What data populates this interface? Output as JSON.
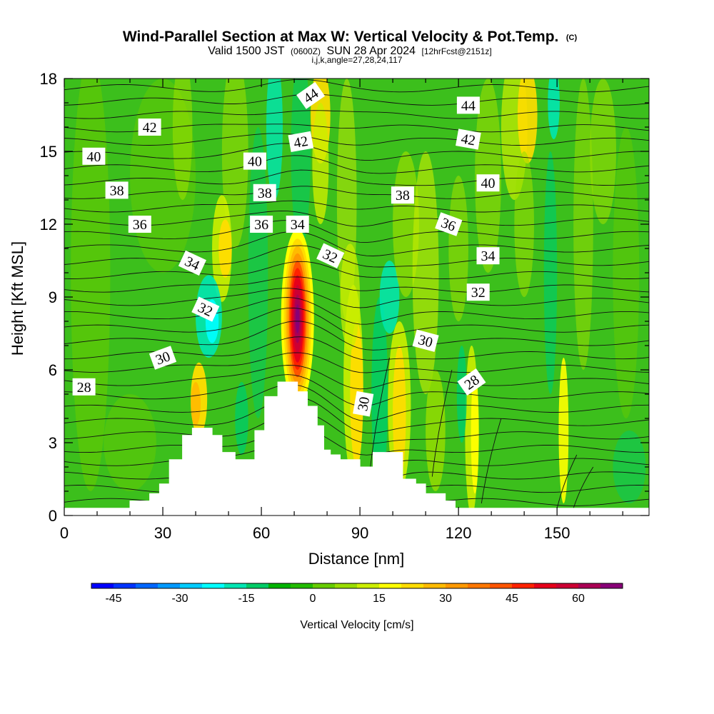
{
  "chart_data": {
    "type": "heatmap",
    "title": "Wind-Parallel Section at Max W: Vertical Velocity & Pot.Temp.",
    "title_mark": "(C)",
    "subtitle": {
      "valid": "Valid 1500 JST",
      "zulu": "(0600Z)",
      "date": "SUN 28 Apr 2024",
      "fcst": "[12hrFcst@2151z]"
    },
    "info_line": "i,j,k,angle=27,28,24,117",
    "xlabel": "Distance [nm]",
    "ylabel": "Height [Kft MSL]",
    "xlim": [
      0,
      178
    ],
    "ylim": [
      0,
      18
    ],
    "xticks": [
      0,
      30,
      60,
      90,
      120,
      150
    ],
    "yticks": [
      0,
      3,
      6,
      9,
      12,
      15,
      18
    ],
    "terrain_profile": [
      [
        0,
        0.3
      ],
      [
        20,
        0.3
      ],
      [
        20,
        0.6
      ],
      [
        26,
        0.6
      ],
      [
        26,
        0.9
      ],
      [
        29,
        0.9
      ],
      [
        29,
        1.3
      ],
      [
        32,
        1.3
      ],
      [
        32,
        2.3
      ],
      [
        36,
        2.3
      ],
      [
        36,
        3.3
      ],
      [
        39,
        3.3
      ],
      [
        39,
        3.6
      ],
      [
        45,
        3.6
      ],
      [
        45,
        3.3
      ],
      [
        48,
        3.3
      ],
      [
        48,
        2.6
      ],
      [
        52,
        2.6
      ],
      [
        52,
        2.3
      ],
      [
        58,
        2.3
      ],
      [
        58,
        3.5
      ],
      [
        61,
        3.5
      ],
      [
        61,
        4.9
      ],
      [
        65,
        4.9
      ],
      [
        65,
        5.5
      ],
      [
        71,
        5.5
      ],
      [
        71,
        5.1
      ],
      [
        74,
        5.1
      ],
      [
        74,
        4.5
      ],
      [
        77,
        4.5
      ],
      [
        77,
        3.7
      ],
      [
        79,
        3.7
      ],
      [
        79,
        2.7
      ],
      [
        81,
        2.7
      ],
      [
        81,
        2.5
      ],
      [
        84,
        2.5
      ],
      [
        84,
        2.3
      ],
      [
        90,
        2.3
      ],
      [
        90,
        2.0
      ],
      [
        94,
        2.0
      ],
      [
        94,
        2.6
      ],
      [
        103,
        2.6
      ],
      [
        103,
        1.5
      ],
      [
        107,
        1.5
      ],
      [
        107,
        1.3
      ],
      [
        110,
        1.3
      ],
      [
        110,
        0.9
      ],
      [
        116,
        0.9
      ],
      [
        116,
        0.6
      ],
      [
        119,
        0.6
      ],
      [
        119,
        0.3
      ],
      [
        178,
        0.3
      ]
    ],
    "colorbar": {
      "label": "Vertical Velocity [cm/s]",
      "tick_labels": [
        "-45",
        "-30",
        "-15",
        "0",
        "15",
        "30",
        "45",
        "60"
      ],
      "tick_values": [
        -45,
        -30,
        -15,
        0,
        15,
        30,
        45,
        60
      ],
      "range": [
        -50,
        70
      ],
      "colors": [
        "#0000ff",
        "#0033ff",
        "#0066ff",
        "#0099ff",
        "#00ccff",
        "#00ffff",
        "#00e6b3",
        "#00cc66",
        "#00b300",
        "#22bb00",
        "#66cc00",
        "#99dd00",
        "#ccee00",
        "#ffff00",
        "#ffdd00",
        "#ffbb00",
        "#ff9900",
        "#ff7700",
        "#ff5500",
        "#ff2200",
        "#e6001a",
        "#cc0033",
        "#aa0055",
        "#880077"
      ]
    },
    "contour_labels": [
      {
        "text": "42",
        "x": 26,
        "y": 16.0,
        "angle": 0
      },
      {
        "text": "40",
        "x": 9,
        "y": 14.8,
        "angle": 0
      },
      {
        "text": "38",
        "x": 16,
        "y": 13.4,
        "angle": 0
      },
      {
        "text": "36",
        "x": 23,
        "y": 12.0,
        "angle": 0
      },
      {
        "text": "34",
        "x": 39,
        "y": 10.4,
        "angle": 25
      },
      {
        "text": "32",
        "x": 43,
        "y": 8.5,
        "angle": 25
      },
      {
        "text": "30",
        "x": 30,
        "y": 6.5,
        "angle": -20
      },
      {
        "text": "28",
        "x": 6,
        "y": 5.3,
        "angle": 0
      },
      {
        "text": "44",
        "x": 75,
        "y": 17.3,
        "angle": -35
      },
      {
        "text": "42",
        "x": 72,
        "y": 15.4,
        "angle": -10
      },
      {
        "text": "40",
        "x": 58,
        "y": 14.6,
        "angle": 0
      },
      {
        "text": "38",
        "x": 61,
        "y": 13.3,
        "angle": 0
      },
      {
        "text": "36",
        "x": 60,
        "y": 12.0,
        "angle": 0
      },
      {
        "text": "34",
        "x": 71,
        "y": 12.0,
        "angle": 0
      },
      {
        "text": "32",
        "x": 81,
        "y": 10.7,
        "angle": 25
      },
      {
        "text": "30",
        "x": 91,
        "y": 4.6,
        "angle": -80
      },
      {
        "text": "38",
        "x": 103,
        "y": 13.2,
        "angle": 0
      },
      {
        "text": "36",
        "x": 117,
        "y": 12.0,
        "angle": 20
      },
      {
        "text": "44",
        "x": 123,
        "y": 16.9,
        "angle": 0
      },
      {
        "text": "42",
        "x": 123,
        "y": 15.5,
        "angle": 10
      },
      {
        "text": "40",
        "x": 129,
        "y": 13.7,
        "angle": 0
      },
      {
        "text": "34",
        "x": 129,
        "y": 10.7,
        "angle": 0
      },
      {
        "text": "32",
        "x": 126,
        "y": 9.2,
        "angle": 0
      },
      {
        "text": "30",
        "x": 110,
        "y": 7.2,
        "angle": 15
      },
      {
        "text": "28",
        "x": 124,
        "y": 5.5,
        "angle": -35
      }
    ]
  }
}
